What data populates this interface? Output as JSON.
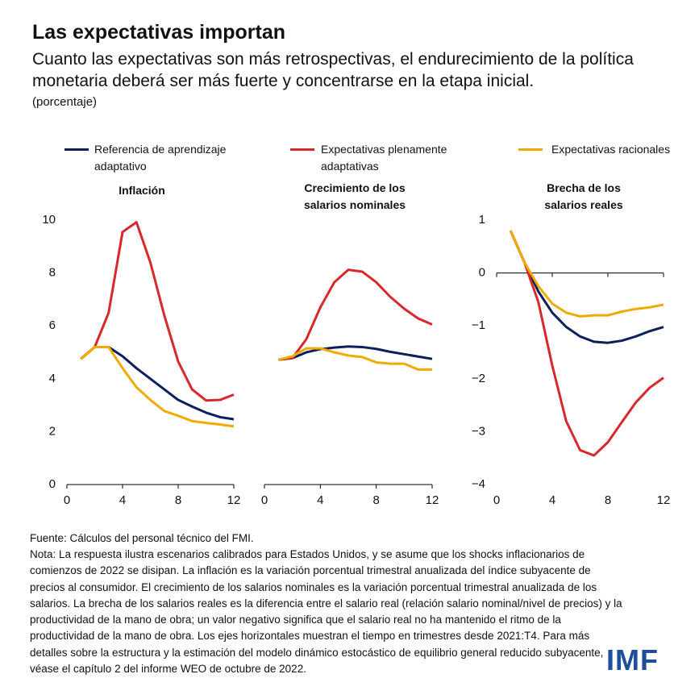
{
  "header": {
    "title": "Las expectativas importan",
    "subtitle": "Cuanto las expectativas son más retrospectivas, el endurecimiento de la política monetaria deberá ser más fuerte y concentrarse en la etapa inicial.",
    "unit": "(porcentaje)"
  },
  "chart_data": [
    {
      "type": "line",
      "title": "Inflación",
      "x": [
        1,
        2,
        3,
        4,
        5,
        6,
        7,
        8,
        9,
        10,
        11,
        12
      ],
      "series": [
        {
          "name": "Referencia de aprendizaje adaptativo",
          "color": "#0d1f5c",
          "values": [
            4.75,
            5.2,
            5.2,
            4.85,
            4.4,
            4.0,
            3.6,
            3.2,
            2.95,
            2.72,
            2.55,
            2.47
          ]
        },
        {
          "name": "Expectativas plenamente adaptativas",
          "color": "#d7282a",
          "values": [
            4.75,
            5.2,
            6.5,
            9.55,
            9.92,
            8.4,
            6.4,
            4.65,
            3.6,
            3.18,
            3.2,
            3.4
          ]
        },
        {
          "name": "Expectativas racionales",
          "color": "#f0ab00",
          "values": [
            4.75,
            5.2,
            5.2,
            4.4,
            3.68,
            3.2,
            2.78,
            2.6,
            2.4,
            2.33,
            2.27,
            2.2
          ]
        }
      ],
      "xlim": [
        0,
        12
      ],
      "xticks": [
        0,
        4,
        8,
        12
      ],
      "ylim": [
        0,
        10
      ],
      "yticks": [
        0,
        2,
        4,
        6,
        8,
        10
      ]
    },
    {
      "type": "line",
      "title": "Crecimiento de los salarios nominales",
      "x": [
        1,
        2,
        3,
        4,
        5,
        6,
        7,
        8,
        9,
        10,
        11,
        12
      ],
      "series": [
        {
          "color": "#0d1f5c",
          "values": [
            4.72,
            4.78,
            5.0,
            5.12,
            5.18,
            5.22,
            5.2,
            5.13,
            5.02,
            4.93,
            4.84,
            4.75
          ]
        },
        {
          "color": "#d7282a",
          "values": [
            4.72,
            4.78,
            5.5,
            6.7,
            7.65,
            8.12,
            8.05,
            7.65,
            7.1,
            6.65,
            6.28,
            6.05
          ]
        },
        {
          "color": "#f0ab00",
          "values": [
            4.72,
            4.85,
            5.15,
            5.15,
            5.0,
            4.88,
            4.82,
            4.62,
            4.57,
            4.57,
            4.35,
            4.35
          ]
        }
      ],
      "xlim": [
        0,
        12
      ],
      "xticks": [
        0,
        4,
        8,
        12
      ],
      "ylim": [
        0,
        10
      ]
    },
    {
      "type": "line",
      "title": "Brecha de los salarios reales",
      "x": [
        1,
        2,
        3,
        4,
        5,
        6,
        7,
        8,
        9,
        10,
        11,
        12
      ],
      "series": [
        {
          "color": "#0d1f5c",
          "values": [
            0.8,
            0.2,
            -0.35,
            -0.75,
            -1.02,
            -1.2,
            -1.3,
            -1.32,
            -1.28,
            -1.2,
            -1.1,
            -1.02
          ]
        },
        {
          "color": "#d7282a",
          "values": [
            0.8,
            0.2,
            -0.55,
            -1.75,
            -2.8,
            -3.35,
            -3.45,
            -3.2,
            -2.82,
            -2.45,
            -2.17,
            -1.98
          ]
        },
        {
          "color": "#f0ab00",
          "values": [
            0.8,
            0.2,
            -0.25,
            -0.58,
            -0.75,
            -0.82,
            -0.8,
            -0.8,
            -0.73,
            -0.68,
            -0.65,
            -0.6
          ]
        }
      ],
      "xlim": [
        0,
        12
      ],
      "xticks": [
        0,
        4,
        8,
        12
      ],
      "ylim": [
        -4,
        1
      ],
      "yticks": [
        {
          "value": -4,
          "label": "−4"
        },
        {
          "value": -3,
          "label": "−3"
        },
        {
          "value": -2,
          "label": "−2"
        },
        {
          "value": -1,
          "label": "−1"
        },
        0,
        1
      ]
    }
  ],
  "footer": {
    "source": "Fuente: Cálculos del personal técnico del FMI.",
    "note": "Nota: La respuesta ilustra escenarios calibrados para Estados Unidos, y se asume que los shocks inflacionarios de comienzos de 2022 se disipan. La inflación es la variación porcentual trimestral anualizada del índice subyacente de precios al consumidor. El crecimiento de los salarios nominales es la variación porcentual trimestral anualizada de los salarios. La brecha de los salarios reales es la diferencia entre el salario real (relación salario nominal/nivel de precios) y la productividad de la mano de obra; un valor negativo significa que el salario real no ha mantenido el ritmo de la productividad de la mano de obra. Los ejes horizontales muestran el tiempo en trimestres desde 2021:T4. Para más detalles sobre la estructura y la estimación del modelo dinámico estocástico de equilibrio general reducido subyacente, véase el capítulo 2 del informe WEO de octubre de 2022.",
    "logo": "IMF"
  }
}
